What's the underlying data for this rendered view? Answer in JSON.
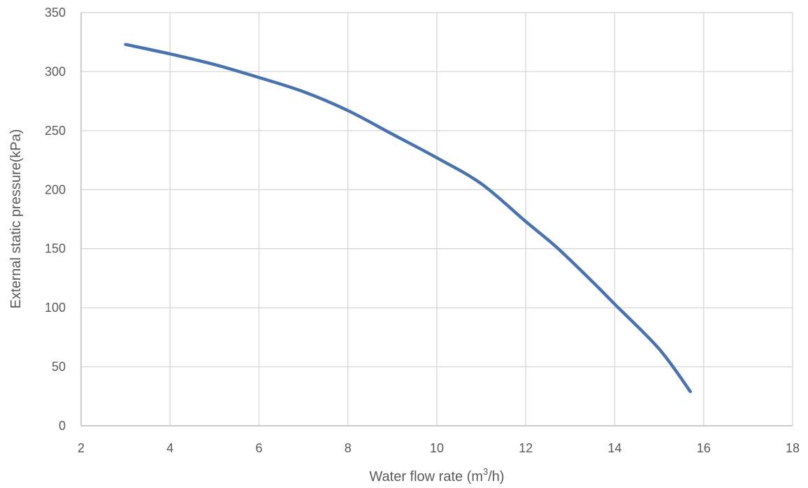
{
  "chart_data": {
    "type": "line",
    "xlabel": {
      "prefix": "Water flow rate (m",
      "superscript": "3",
      "suffix": "/h)"
    },
    "ylabel": "External static pressure(kPa)",
    "xlim": [
      2,
      18
    ],
    "ylim": [
      0,
      350
    ],
    "x_ticks": [
      2,
      4,
      6,
      8,
      10,
      12,
      14,
      16,
      18
    ],
    "y_ticks": [
      0,
      50,
      100,
      150,
      200,
      250,
      300,
      350
    ],
    "grid": true,
    "legend": "none",
    "series": [
      {
        "color": "#4a72ad",
        "x": [
          3.0,
          4.0,
          5.0,
          6.0,
          7.0,
          8.0,
          9.0,
          10.0,
          11.0,
          12.0,
          12.7,
          13.5,
          14.0,
          15.0,
          15.7
        ],
        "y": [
          323,
          315,
          306,
          295,
          283,
          267,
          247,
          227,
          205,
          173,
          151,
          122,
          103,
          65,
          29
        ]
      }
    ]
  }
}
